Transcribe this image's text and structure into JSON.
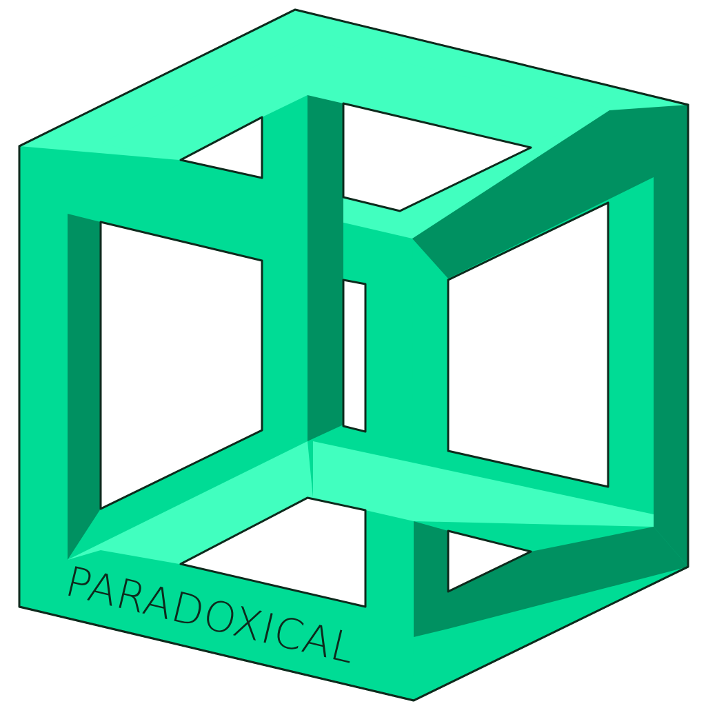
{
  "logo": {
    "wordmark": "PARADOXICAL",
    "depicts": "impossible-cube-icon"
  },
  "colors": {
    "light": "#41ffbf",
    "mid": "#00dc95",
    "dark": "#009161",
    "outline": "#0d2a1c",
    "background": "#ffffff"
  }
}
